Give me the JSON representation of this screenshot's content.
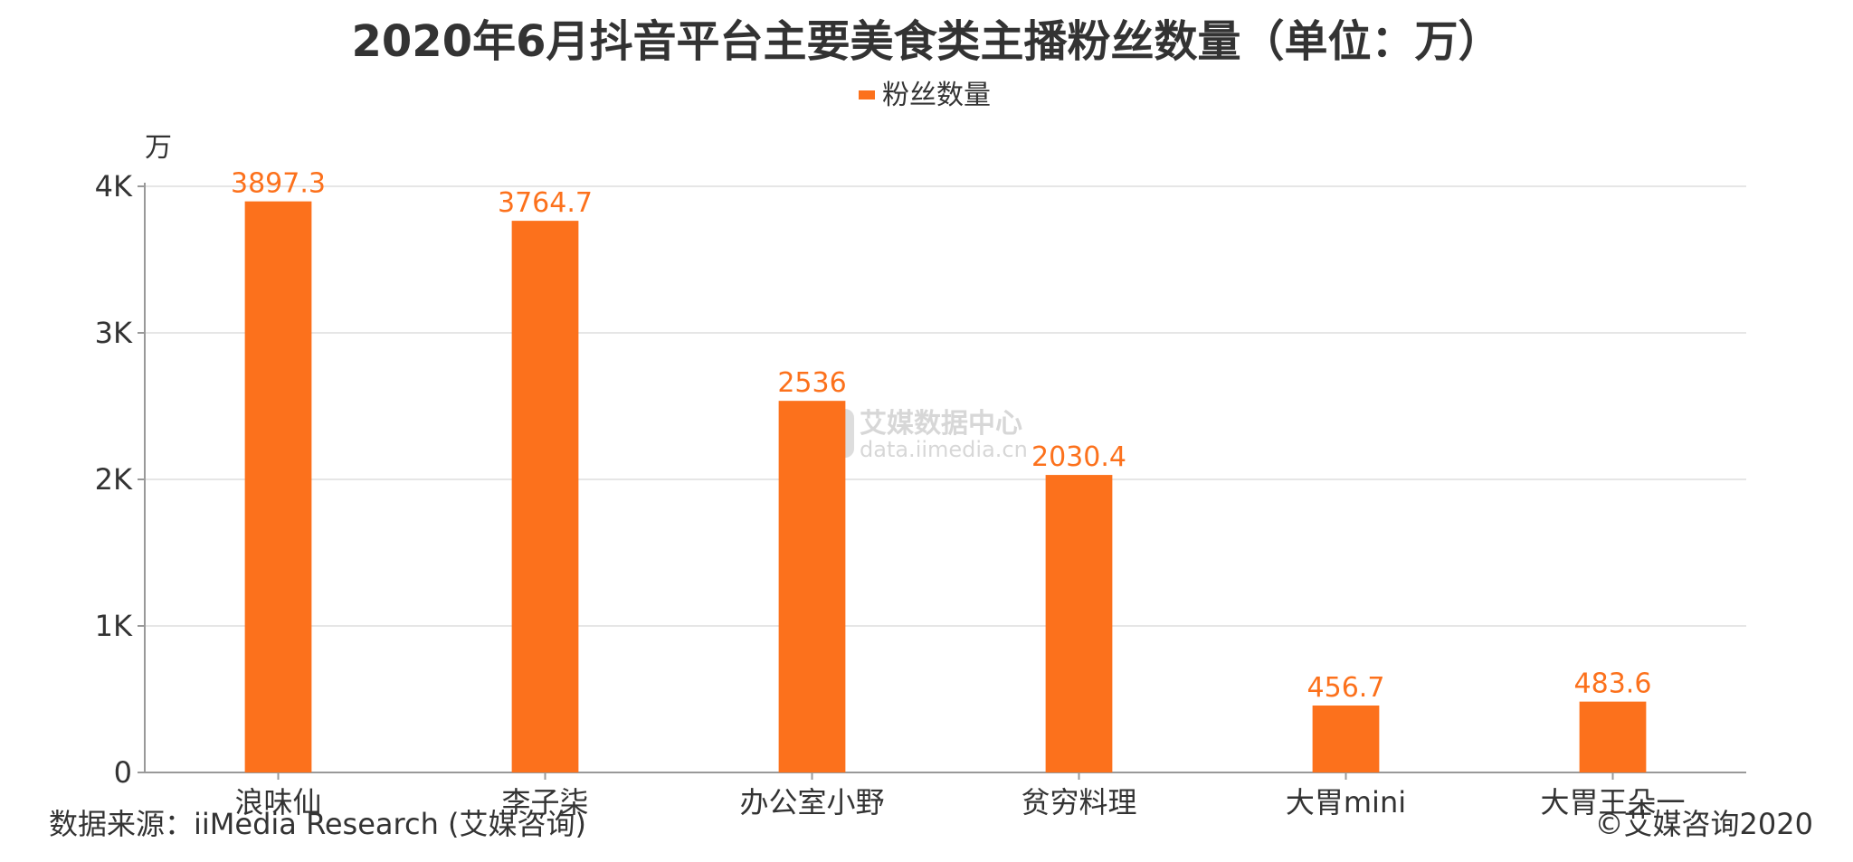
{
  "chart_data": {
    "type": "bar",
    "title": "2020年6月抖音平台主要美食类主播粉丝数量（单位：万）",
    "ylabel": "万",
    "xlabel": "",
    "categories": [
      "浪味仙",
      "李子柒",
      "办公室小野",
      "贫穷料理",
      "大胃mini",
      "大胃王朵一"
    ],
    "series": [
      {
        "name": "粉丝数量",
        "values": [
          3897.3,
          3764.7,
          2536,
          2030.4,
          456.7,
          483.6
        ],
        "labels": [
          "3897.3",
          "3764.7",
          "2536",
          "2030.4",
          "456.7",
          "483.6"
        ]
      }
    ],
    "ylim": [
      0,
      4000
    ],
    "yticks": [
      {
        "value": 0,
        "label": "0"
      },
      {
        "value": 1000,
        "label": "1K"
      },
      {
        "value": 2000,
        "label": "2K"
      },
      {
        "value": 3000,
        "label": "3K"
      },
      {
        "value": 4000,
        "label": "4K"
      }
    ],
    "grid": true,
    "legend_position": "top-center",
    "colors": {
      "bar": "#fc711c",
      "label": "#fc711c",
      "grid": "#e6e6e6",
      "axis": "#999999",
      "text": "#333333"
    }
  },
  "watermark": {
    "logo_char": "艾",
    "name": "艾媒数据中心",
    "url": "data.iimedia.cn"
  },
  "footer": {
    "source": "数据来源：iiMedia Research (艾媒咨询)",
    "copyright": "©艾媒咨询2020"
  }
}
